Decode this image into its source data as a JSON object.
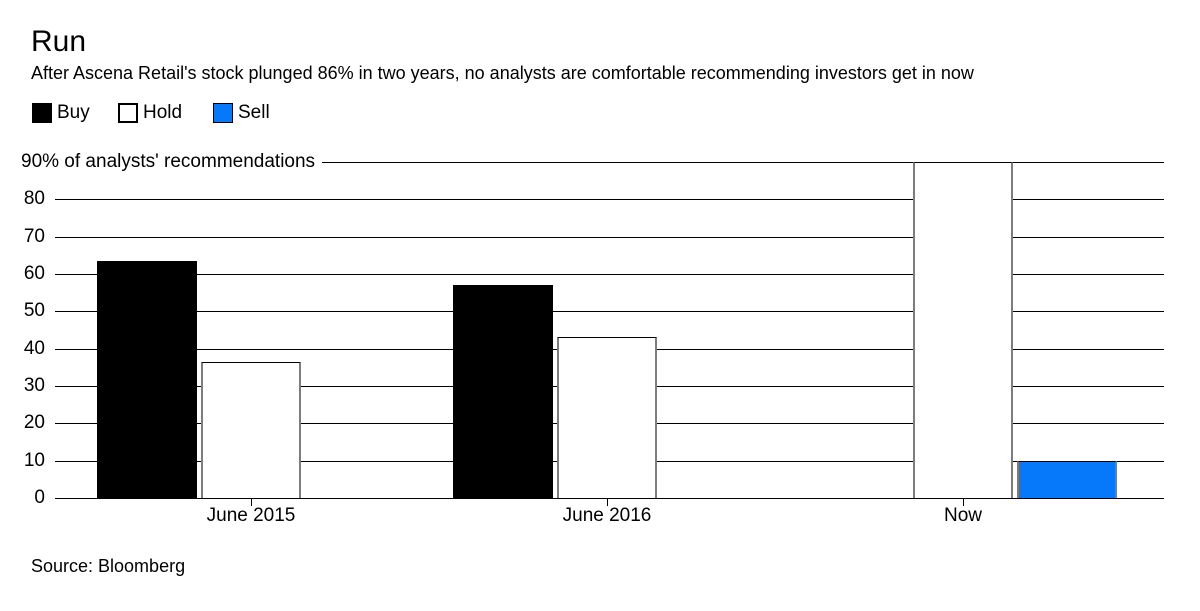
{
  "header": {
    "title": "Run",
    "subtitle": "After Ascena Retail's stock plunged 86% in two years, no analysts are comfortable recommending investors get in now"
  },
  "legend": [
    {
      "label": "Buy",
      "color": "#000000"
    },
    {
      "label": "Hold",
      "color": "#ffffff"
    },
    {
      "label": "Sell",
      "color": "#0679fa"
    }
  ],
  "chart_data": {
    "type": "bar",
    "title": "Run",
    "categories": [
      "June 2015",
      "June 2016",
      "Now"
    ],
    "series": [
      {
        "name": "Buy",
        "color": "#000000",
        "values": [
          63.5,
          57,
          0
        ]
      },
      {
        "name": "Hold",
        "color": "#ffffff",
        "values": [
          36.5,
          43,
          90
        ]
      },
      {
        "name": "Sell",
        "color": "#0679fa",
        "values": [
          0,
          0,
          10
        ]
      }
    ],
    "ylabel_top": "90% of analysts' recommendations",
    "yticks": [
      0,
      10,
      20,
      30,
      40,
      50,
      60,
      70,
      80,
      90
    ],
    "ylim": [
      0,
      90
    ],
    "grid": "horizontal",
    "legend_position": "top-left"
  },
  "source": "Source: Bloomberg",
  "colors": {
    "sell_blue": "#0679fa",
    "grid": "#000000",
    "bar_edge_gray": "#7d7d7d"
  }
}
